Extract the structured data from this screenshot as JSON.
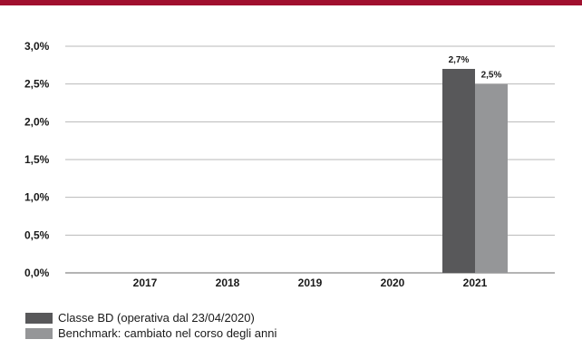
{
  "colors": {
    "top_band": "#a0102e",
    "grid": "#b8b8b8",
    "axis": "#6a6a6a"
  },
  "chart_data": {
    "type": "bar",
    "categories": [
      "2017",
      "2018",
      "2019",
      "2020",
      "2021"
    ],
    "series": [
      {
        "name": "Classe BD (operativa dal 23/04/2020)",
        "color": "#58585a",
        "values": [
          null,
          null,
          null,
          null,
          2.7
        ],
        "labels": [
          "",
          "",
          "",
          "",
          "2,7%"
        ]
      },
      {
        "name": "Benchmark: cambiato nel corso degli anni",
        "color": "#959698",
        "values": [
          null,
          null,
          null,
          null,
          2.5
        ],
        "labels": [
          "",
          "",
          "",
          "",
          "2,5%"
        ]
      }
    ],
    "ylim": [
      0,
      3.0
    ],
    "yticks": [
      0,
      0.5,
      1.0,
      1.5,
      2.0,
      2.5,
      3.0
    ],
    "ytick_labels": [
      "0,0%",
      "0,5%",
      "1,0%",
      "1,5%",
      "2,0%",
      "2,5%",
      "3,0%"
    ],
    "grid": true,
    "legend_position": "bottom-left"
  }
}
